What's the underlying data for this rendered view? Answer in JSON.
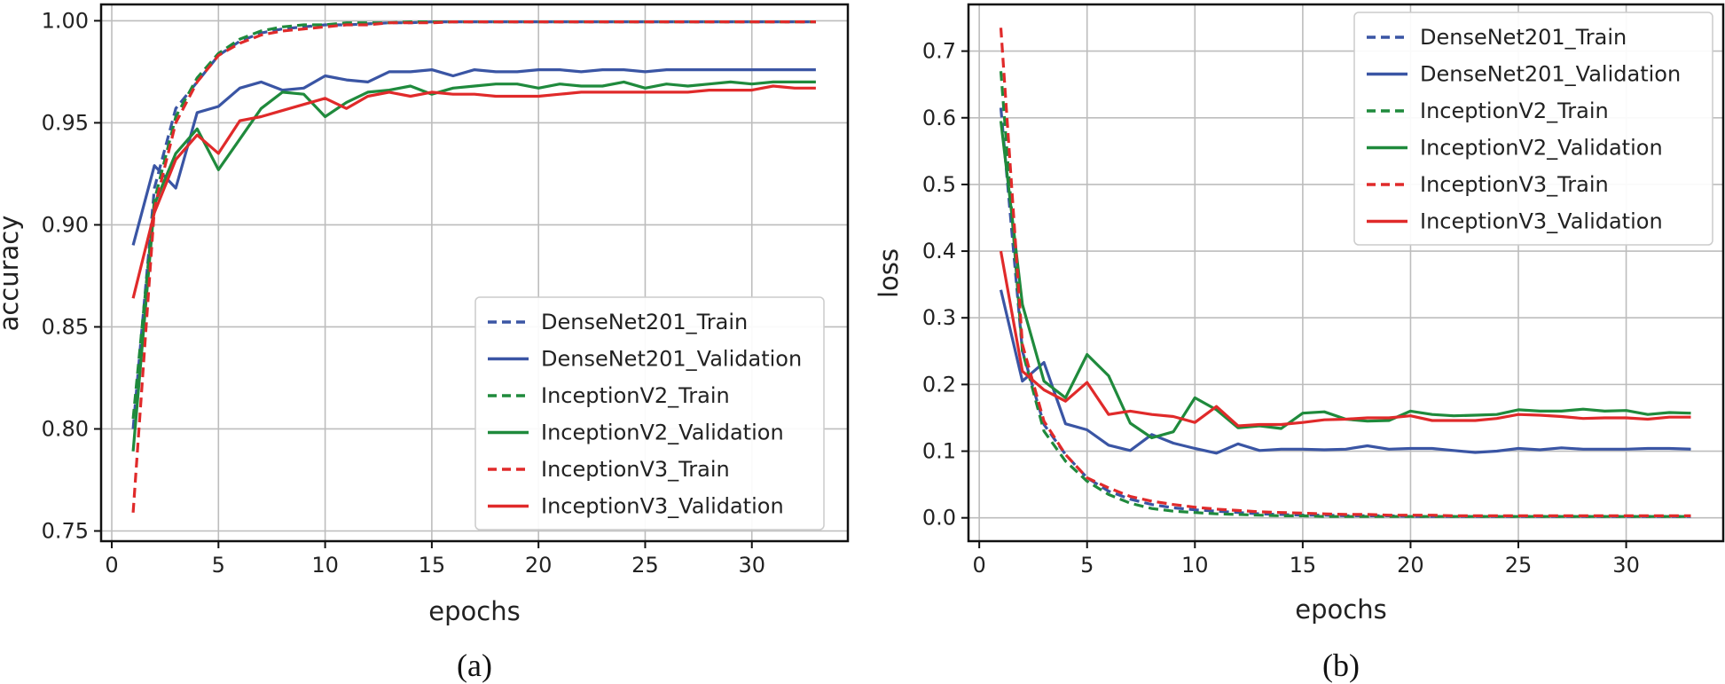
{
  "figure": {
    "panels": [
      {
        "caption": "(a)",
        "xlabel": "epochs",
        "ylabel": "accuracy",
        "xticks": [
          0,
          5,
          10,
          15,
          20,
          25,
          30
        ],
        "yticks": [
          "0.75",
          "0.80",
          "0.85",
          "0.90",
          "0.95",
          "1.00"
        ],
        "legend": [
          "DenseNet201_Train",
          "DenseNet201_Validation",
          "InceptionV2_Train",
          "InceptionV2_Validation",
          "InceptionV3_Train",
          "InceptionV3_Validation"
        ]
      },
      {
        "caption": "(b)",
        "xlabel": "epochs",
        "ylabel": "loss",
        "xticks": [
          0,
          5,
          10,
          15,
          20,
          25,
          30
        ],
        "yticks": [
          "0.0",
          "0.1",
          "0.2",
          "0.3",
          "0.4",
          "0.5",
          "0.6",
          "0.7"
        ],
        "legend": [
          "DenseNet201_Train",
          "DenseNet201_Validation",
          "InceptionV2_Train",
          "InceptionV2_Validation",
          "InceptionV3_Train",
          "InceptionV3_Validation"
        ]
      }
    ]
  },
  "chart_data": [
    {
      "type": "line",
      "title": "",
      "xlabel": "epochs",
      "ylabel": "accuracy",
      "xlim": [
        -0.5,
        34.5
      ],
      "ylim": [
        0.745,
        1.008
      ],
      "grid": true,
      "legend_position": "lower-right",
      "x": [
        1,
        2,
        3,
        4,
        5,
        6,
        7,
        8,
        9,
        10,
        11,
        12,
        13,
        14,
        15,
        16,
        17,
        18,
        19,
        20,
        21,
        22,
        23,
        24,
        25,
        26,
        27,
        28,
        29,
        30,
        31,
        32,
        33
      ],
      "series": [
        {
          "name": "DenseNet201_Train",
          "color": "#3a55a4",
          "style": "dashed",
          "values": [
            0.8,
            0.918,
            0.957,
            0.97,
            0.983,
            0.99,
            0.994,
            0.996,
            0.997,
            0.998,
            0.998,
            0.9985,
            0.999,
            0.999,
            0.9995,
            0.9995,
            0.9995,
            0.9995,
            0.9995,
            0.9995,
            0.9995,
            0.9995,
            0.9995,
            0.9995,
            0.9995,
            0.9995,
            0.9995,
            0.9995,
            0.9995,
            0.9995,
            0.9995,
            0.9995,
            0.9995
          ]
        },
        {
          "name": "DenseNet201_Validation",
          "color": "#3a55a4",
          "style": "solid",
          "values": [
            0.89,
            0.929,
            0.918,
            0.955,
            0.958,
            0.967,
            0.97,
            0.966,
            0.967,
            0.973,
            0.971,
            0.97,
            0.975,
            0.975,
            0.976,
            0.973,
            0.976,
            0.975,
            0.975,
            0.976,
            0.976,
            0.975,
            0.976,
            0.976,
            0.975,
            0.976,
            0.976,
            0.976,
            0.976,
            0.976,
            0.976,
            0.976,
            0.976
          ]
        },
        {
          "name": "InceptionV2_Train",
          "color": "#1f8a3c",
          "style": "dashed",
          "values": [
            0.805,
            0.912,
            0.953,
            0.972,
            0.984,
            0.991,
            0.995,
            0.997,
            0.998,
            0.998,
            0.999,
            0.999,
            0.999,
            0.9995,
            0.9995,
            0.9995,
            0.9995,
            0.9995,
            0.9995,
            0.9995,
            0.9995,
            0.9995,
            0.9995,
            0.9995,
            0.9995,
            0.9995,
            0.9995,
            0.9995,
            0.9995,
            0.9995,
            0.9995,
            0.9995,
            0.9995
          ]
        },
        {
          "name": "InceptionV2_Validation",
          "color": "#1f8a3c",
          "style": "solid",
          "values": [
            0.789,
            0.91,
            0.935,
            0.947,
            0.927,
            0.942,
            0.957,
            0.965,
            0.964,
            0.953,
            0.96,
            0.965,
            0.966,
            0.968,
            0.964,
            0.967,
            0.968,
            0.969,
            0.969,
            0.967,
            0.969,
            0.968,
            0.968,
            0.97,
            0.967,
            0.969,
            0.968,
            0.969,
            0.97,
            0.969,
            0.97,
            0.97,
            0.97
          ]
        },
        {
          "name": "InceptionV3_Train",
          "color": "#e02a2a",
          "style": "dashed",
          "values": [
            0.759,
            0.908,
            0.95,
            0.97,
            0.983,
            0.989,
            0.993,
            0.995,
            0.996,
            0.997,
            0.998,
            0.998,
            0.999,
            0.999,
            0.999,
            0.9995,
            0.9995,
            0.9995,
            0.9995,
            0.9995,
            0.9995,
            0.9995,
            0.9995,
            0.9995,
            0.9995,
            0.9995,
            0.9995,
            0.9995,
            0.9995,
            0.9995,
            0.9995,
            0.9995,
            0.9995
          ]
        },
        {
          "name": "InceptionV3_Validation",
          "color": "#e02a2a",
          "style": "solid",
          "values": [
            0.864,
            0.906,
            0.932,
            0.944,
            0.935,
            0.951,
            0.953,
            0.956,
            0.959,
            0.962,
            0.957,
            0.963,
            0.965,
            0.963,
            0.965,
            0.964,
            0.964,
            0.963,
            0.963,
            0.963,
            0.964,
            0.965,
            0.965,
            0.965,
            0.965,
            0.965,
            0.965,
            0.966,
            0.966,
            0.966,
            0.968,
            0.967,
            0.967
          ]
        }
      ]
    },
    {
      "type": "line",
      "title": "",
      "xlabel": "epochs",
      "ylabel": "loss",
      "xlim": [
        -0.5,
        34.5
      ],
      "ylim": [
        -0.035,
        0.77
      ],
      "grid": true,
      "legend_position": "top-right",
      "x": [
        1,
        2,
        3,
        4,
        5,
        6,
        7,
        8,
        9,
        10,
        11,
        12,
        13,
        14,
        15,
        16,
        17,
        18,
        19,
        20,
        21,
        22,
        23,
        24,
        25,
        26,
        27,
        28,
        29,
        30,
        31,
        32,
        33
      ],
      "series": [
        {
          "name": "DenseNet201_Train",
          "color": "#3a55a4",
          "style": "dashed",
          "values": [
            0.615,
            0.25,
            0.14,
            0.095,
            0.06,
            0.04,
            0.028,
            0.02,
            0.015,
            0.012,
            0.01,
            0.008,
            0.006,
            0.005,
            0.004,
            0.004,
            0.003,
            0.003,
            0.003,
            0.002,
            0.002,
            0.002,
            0.002,
            0.002,
            0.002,
            0.002,
            0.002,
            0.002,
            0.002,
            0.002,
            0.002,
            0.002,
            0.002
          ]
        },
        {
          "name": "DenseNet201_Validation",
          "color": "#3a55a4",
          "style": "solid",
          "values": [
            0.342,
            0.205,
            0.233,
            0.141,
            0.132,
            0.109,
            0.101,
            0.125,
            0.112,
            0.104,
            0.097,
            0.111,
            0.101,
            0.103,
            0.103,
            0.102,
            0.103,
            0.108,
            0.103,
            0.104,
            0.104,
            0.101,
            0.098,
            0.1,
            0.104,
            0.102,
            0.105,
            0.103,
            0.103,
            0.103,
            0.104,
            0.104,
            0.103
          ]
        },
        {
          "name": "InceptionV2_Train",
          "color": "#1f8a3c",
          "style": "dashed",
          "values": [
            0.67,
            0.25,
            0.13,
            0.085,
            0.055,
            0.035,
            0.022,
            0.014,
            0.01,
            0.008,
            0.006,
            0.005,
            0.004,
            0.003,
            0.003,
            0.002,
            0.002,
            0.002,
            0.002,
            0.002,
            0.002,
            0.002,
            0.002,
            0.002,
            0.002,
            0.002,
            0.002,
            0.002,
            0.002,
            0.002,
            0.002,
            0.002,
            0.002
          ]
        },
        {
          "name": "InceptionV2_Validation",
          "color": "#1f8a3c",
          "style": "solid",
          "values": [
            0.595,
            0.32,
            0.205,
            0.18,
            0.245,
            0.213,
            0.142,
            0.12,
            0.129,
            0.18,
            0.162,
            0.135,
            0.138,
            0.134,
            0.157,
            0.159,
            0.148,
            0.145,
            0.146,
            0.16,
            0.155,
            0.153,
            0.154,
            0.155,
            0.162,
            0.16,
            0.16,
            0.163,
            0.16,
            0.161,
            0.155,
            0.158,
            0.157
          ]
        },
        {
          "name": "InceptionV3_Train",
          "color": "#e02a2a",
          "style": "dashed",
          "values": [
            0.735,
            0.26,
            0.145,
            0.095,
            0.06,
            0.045,
            0.032,
            0.025,
            0.02,
            0.016,
            0.013,
            0.011,
            0.009,
            0.008,
            0.007,
            0.006,
            0.005,
            0.005,
            0.004,
            0.004,
            0.004,
            0.003,
            0.003,
            0.003,
            0.003,
            0.003,
            0.003,
            0.003,
            0.003,
            0.003,
            0.003,
            0.003,
            0.003
          ]
        },
        {
          "name": "InceptionV3_Validation",
          "color": "#e02a2a",
          "style": "solid",
          "values": [
            0.4,
            0.22,
            0.192,
            0.175,
            0.203,
            0.155,
            0.16,
            0.155,
            0.152,
            0.143,
            0.167,
            0.138,
            0.14,
            0.14,
            0.143,
            0.147,
            0.148,
            0.15,
            0.15,
            0.153,
            0.146,
            0.146,
            0.146,
            0.149,
            0.155,
            0.154,
            0.152,
            0.149,
            0.15,
            0.15,
            0.148,
            0.151,
            0.151
          ]
        }
      ]
    }
  ]
}
